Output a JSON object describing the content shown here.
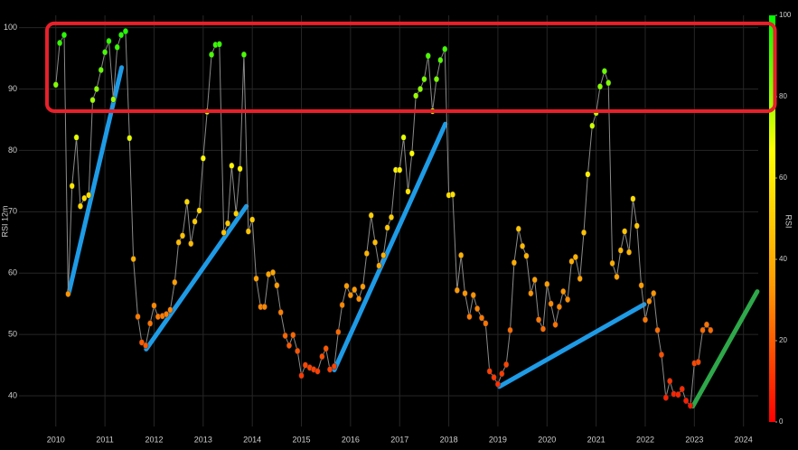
{
  "chart_data": {
    "type": "line",
    "y_label": "RSI 12m",
    "x": [
      2010,
      2010.08,
      2010.17,
      2010.25,
      2010.33,
      2010.42,
      2010.5,
      2010.58,
      2010.67,
      2010.75,
      2010.83,
      2010.92,
      2011,
      2011.08,
      2011.17,
      2011.25,
      2011.33,
      2011.42,
      2011.5,
      2011.58,
      2011.67,
      2011.75,
      2011.83,
      2011.92,
      2012,
      2012.08,
      2012.17,
      2012.25,
      2012.33,
      2012.42,
      2012.5,
      2012.58,
      2012.67,
      2012.75,
      2012.83,
      2012.92,
      2013,
      2013.08,
      2013.17,
      2013.25,
      2013.33,
      2013.42,
      2013.5,
      2013.58,
      2013.67,
      2013.75,
      2013.83,
      2013.92,
      2014,
      2014.08,
      2014.17,
      2014.25,
      2014.33,
      2014.42,
      2014.5,
      2014.58,
      2014.67,
      2014.75,
      2014.83,
      2014.92,
      2015,
      2015.08,
      2015.17,
      2015.25,
      2015.33,
      2015.42,
      2015.5,
      2015.58,
      2015.67,
      2015.75,
      2015.83,
      2015.92,
      2016,
      2016.08,
      2016.17,
      2016.25,
      2016.33,
      2016.42,
      2016.5,
      2016.58,
      2016.67,
      2016.75,
      2016.83,
      2016.92,
      2017,
      2017.08,
      2017.17,
      2017.25,
      2017.33,
      2017.42,
      2017.5,
      2017.58,
      2017.67,
      2017.75,
      2017.83,
      2017.92,
      2018,
      2018.08,
      2018.17,
      2018.25,
      2018.33,
      2018.42,
      2018.5,
      2018.58,
      2018.67,
      2018.75,
      2018.83,
      2018.92,
      2019,
      2019.08,
      2019.17,
      2019.25,
      2019.33,
      2019.42,
      2019.5,
      2019.58,
      2019.67,
      2019.75,
      2019.83,
      2019.92,
      2020,
      2020.08,
      2020.17,
      2020.25,
      2020.33,
      2020.42,
      2020.5,
      2020.58,
      2020.67,
      2020.75,
      2020.83,
      2020.92,
      2021,
      2021.08,
      2021.17,
      2021.25,
      2021.33,
      2021.42,
      2021.5,
      2021.58,
      2021.67,
      2021.75,
      2021.83,
      2021.92,
      2022,
      2022.08,
      2022.17,
      2022.25,
      2022.33,
      2022.42,
      2022.5,
      2022.58,
      2022.67,
      2022.75,
      2022.83,
      2022.92,
      2023,
      2023.08,
      2023.17,
      2023.25,
      2023.33
    ],
    "values": [
      90.7,
      97.5,
      98.8,
      56.6,
      74.2,
      82.1,
      70.9,
      72.2,
      72.7,
      88.2,
      90,
      93.1,
      96,
      97.8,
      88.3,
      96.8,
      98.8,
      99.4,
      82,
      62.3,
      52.9,
      48.7,
      48.2,
      51.8,
      54.7,
      52.9,
      53,
      53.3,
      54,
      58.5,
      65,
      66.1,
      71.6,
      64.8,
      68.4,
      70.2,
      78.7,
      86.3,
      95.6,
      97.2,
      97.3,
      66.6,
      68.1,
      77.5,
      69.7,
      77,
      95.6,
      66.8,
      68.7,
      59.1,
      54.5,
      54.5,
      59.8,
      60.1,
      58,
      53.6,
      49.8,
      48.2,
      49.9,
      47.3,
      43.3,
      45,
      44.6,
      44.3,
      44,
      46.4,
      47.7,
      44.3,
      44.8,
      50.4,
      54.8,
      57.9,
      56.4,
      57.3,
      55.8,
      57.8,
      63.2,
      69.4,
      65,
      61.2,
      62.9,
      67.4,
      69.1,
      76.8,
      76.8,
      82.1,
      73.3,
      79.5,
      88.9,
      90,
      91.6,
      95.4,
      86.4,
      91.6,
      94.7,
      96.5,
      72.7,
      72.8,
      57.2,
      62.9,
      56.7,
      52.9,
      56.4,
      54.2,
      52.7,
      51.8,
      44,
      43,
      41.9,
      43.6,
      45.1,
      50.7,
      61.7,
      67.2,
      64.4,
      62.8,
      56.7,
      58.9,
      52.4,
      50.9,
      58.2,
      55,
      51.6,
      54.5,
      57,
      55.7,
      61.9,
      62.6,
      59.1,
      66.6,
      76.1,
      84,
      86.1,
      90.4,
      92.9,
      91,
      61.6,
      59.4,
      63.7,
      66.8,
      63.4,
      72.1,
      67.7,
      58,
      52.4,
      55.4,
      56.7,
      50.7,
      46.7,
      39.7,
      42.4,
      40.3,
      40.2,
      41.1,
      39.2,
      38.4,
      45.3,
      45.5,
      50.7,
      51.6,
      50.7
    ],
    "line_color": "#8a8a8a",
    "xlim": [
      2009.25,
      2024.3
    ],
    "xticks": [
      2010,
      2011,
      2012,
      2013,
      2014,
      2015,
      2016,
      2017,
      2018,
      2019,
      2020,
      2021,
      2022,
      2023,
      2024
    ],
    "ylim": [
      35,
      102
    ],
    "yticks": [
      40,
      50,
      60,
      70,
      80,
      90,
      100
    ],
    "grid": true,
    "colorbar": {
      "label": "RSI",
      "lim": [
        0,
        100
      ],
      "ticks": [
        0,
        20,
        40,
        60,
        80,
        100
      ],
      "colors": [
        "#ff0000",
        "#ff9900",
        "#ffff00",
        "#00ff00"
      ]
    },
    "trend_lines": [
      {
        "color": "#1e9be6",
        "x": [
          2010.26,
          2011.34
        ],
        "y": [
          56.6,
          93.5
        ]
      },
      {
        "color": "#1e9be6",
        "x": [
          2011.84,
          2013.88
        ],
        "y": [
          47.6,
          70.9
        ]
      },
      {
        "color": "#1e9be6",
        "x": [
          2015.67,
          2017.93
        ],
        "y": [
          44.2,
          84.3
        ]
      },
      {
        "color": "#1e9be6",
        "x": [
          2019.03,
          2021.98
        ],
        "y": [
          41.5,
          54.9
        ]
      },
      {
        "color": "#2ea84a",
        "x": [
          2022.97,
          2024.28
        ],
        "y": [
          38.3,
          57.0
        ]
      }
    ],
    "highlight_box": {
      "color": "#e8202a",
      "x": [
        2009.82,
        2024.64
      ],
      "y": [
        86.4,
        100.7
      ]
    }
  }
}
